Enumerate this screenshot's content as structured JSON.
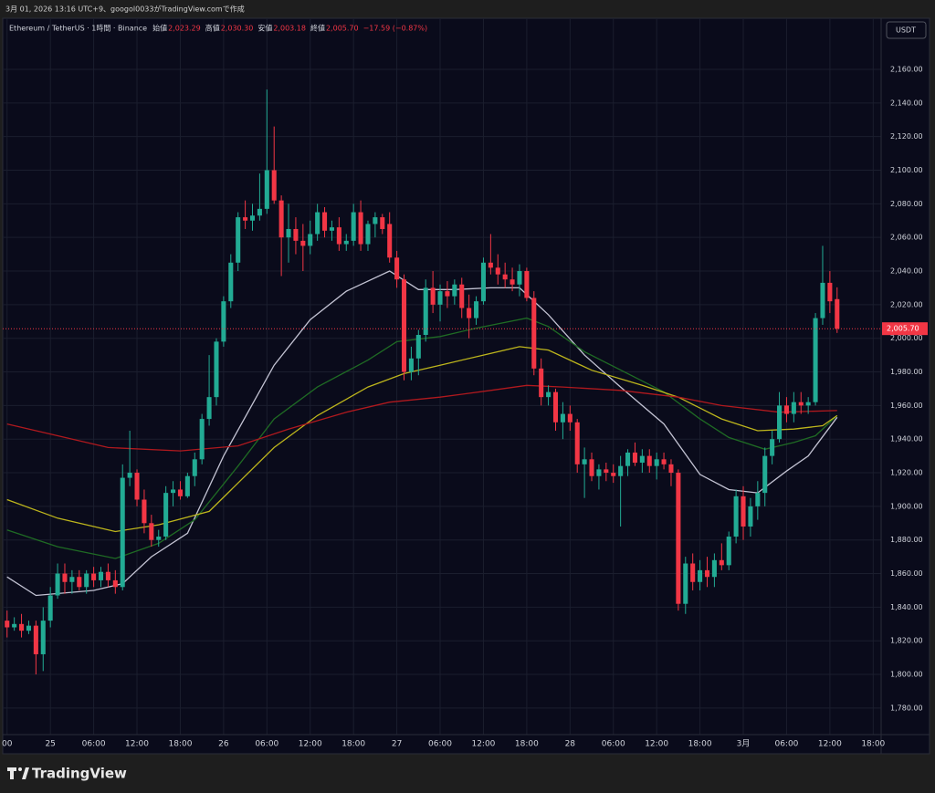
{
  "header": {
    "caption": "3月 01, 2026 13:16 UTC+9、googol0033がTradingView.comで作成"
  },
  "brand": "TradingView",
  "chart_data": {
    "type": "candlestick",
    "symbol": "Ethereum / TetherUS · 1時間 · Binance",
    "legend_values": [
      {
        "label": "始値",
        "value": "2,023.29"
      },
      {
        "label": "高値",
        "value": "2,030.30"
      },
      {
        "label": "安値",
        "value": "2,003.18"
      },
      {
        "label": "終値",
        "value": "2,005.70"
      }
    ],
    "change": "−17.59 (−0.87%)",
    "currency": "USDT",
    "up_color": "#22ab94",
    "down_color": "#f23645",
    "grid": true,
    "last_price": {
      "value": 2005.7,
      "label": "2,005.70"
    },
    "xlim": [
      -0.6,
      121.1
    ],
    "xticks": [
      {
        "value": 0,
        "label": "00"
      },
      {
        "value": 6,
        "label": "25"
      },
      {
        "value": 12,
        "label": "06:00"
      },
      {
        "value": 18,
        "label": "12:00"
      },
      {
        "value": 24,
        "label": "18:00"
      },
      {
        "value": 30,
        "label": "26"
      },
      {
        "value": 36,
        "label": "06:00"
      },
      {
        "value": 42,
        "label": "12:00"
      },
      {
        "value": 48,
        "label": "18:00"
      },
      {
        "value": 54,
        "label": "27"
      },
      {
        "value": 60,
        "label": "06:00"
      },
      {
        "value": 66,
        "label": "12:00"
      },
      {
        "value": 72,
        "label": "18:00"
      },
      {
        "value": 78,
        "label": "28"
      },
      {
        "value": 84,
        "label": "06:00"
      },
      {
        "value": 90,
        "label": "12:00"
      },
      {
        "value": 96,
        "label": "18:00"
      },
      {
        "value": 102,
        "label": "3月"
      },
      {
        "value": 108,
        "label": "06:00"
      },
      {
        "value": 114,
        "label": "12:00"
      },
      {
        "value": 120,
        "label": "18:00"
      }
    ],
    "ylim": [
      1764.2,
      2190.4
    ],
    "yticks": [
      {
        "value": 1780,
        "label": "1,780.00"
      },
      {
        "value": 1800,
        "label": "1,800.00"
      },
      {
        "value": 1820,
        "label": "1,820.00"
      },
      {
        "value": 1840,
        "label": "1,840.00"
      },
      {
        "value": 1860,
        "label": "1,860.00"
      },
      {
        "value": 1880,
        "label": "1,880.00"
      },
      {
        "value": 1900,
        "label": "1,900.00"
      },
      {
        "value": 1920,
        "label": "1,920.00"
      },
      {
        "value": 1940,
        "label": "1,940.00"
      },
      {
        "value": 1960,
        "label": "1,960.00"
      },
      {
        "value": 1980,
        "label": "1,980.00"
      },
      {
        "value": 2000,
        "label": "2,000.00"
      },
      {
        "value": 2020,
        "label": "2,020.00"
      },
      {
        "value": 2040,
        "label": "2,040.00"
      },
      {
        "value": 2060,
        "label": "2,060.00"
      },
      {
        "value": 2080,
        "label": "2,080.00"
      },
      {
        "value": 2100,
        "label": "2,100.00"
      },
      {
        "value": 2120,
        "label": "2,120.00"
      },
      {
        "value": 2140,
        "label": "2,140.00"
      },
      {
        "value": 2160,
        "label": "2,160.00"
      }
    ],
    "ohlc": [
      [
        1832,
        1838,
        1822,
        1828
      ],
      [
        1828,
        1834,
        1826,
        1830
      ],
      [
        1830,
        1836,
        1822,
        1826
      ],
      [
        1826,
        1832,
        1824,
        1829
      ],
      [
        1829,
        1832,
        1800,
        1812
      ],
      [
        1812,
        1840,
        1802,
        1832
      ],
      [
        1832,
        1852,
        1828,
        1847
      ],
      [
        1847,
        1866,
        1845,
        1860
      ],
      [
        1860,
        1866,
        1848,
        1855
      ],
      [
        1855,
        1862,
        1848,
        1858
      ],
      [
        1858,
        1862,
        1850,
        1852
      ],
      [
        1852,
        1862,
        1848,
        1860
      ],
      [
        1860,
        1864,
        1852,
        1856
      ],
      [
        1856,
        1864,
        1852,
        1861
      ],
      [
        1861,
        1866,
        1852,
        1856
      ],
      [
        1856,
        1862,
        1848,
        1852
      ],
      [
        1852,
        1925,
        1850,
        1917
      ],
      [
        1917,
        1945,
        1912,
        1920
      ],
      [
        1920,
        1922,
        1900,
        1904
      ],
      [
        1904,
        1910,
        1884,
        1890
      ],
      [
        1890,
        1895,
        1876,
        1880
      ],
      [
        1880,
        1886,
        1876,
        1882
      ],
      [
        1882,
        1912,
        1880,
        1908
      ],
      [
        1908,
        1915,
        1900,
        1910
      ],
      [
        1910,
        1915,
        1904,
        1906
      ],
      [
        1906,
        1920,
        1905,
        1918
      ],
      [
        1918,
        1932,
        1912,
        1928
      ],
      [
        1928,
        1955,
        1925,
        1952
      ],
      [
        1952,
        1990,
        1948,
        1965
      ],
      [
        1965,
        2000,
        1960,
        1998
      ],
      [
        1998,
        2025,
        1995,
        2022
      ],
      [
        2022,
        2050,
        2018,
        2045
      ],
      [
        2045,
        2075,
        2040,
        2072
      ],
      [
        2072,
        2082,
        2065,
        2070
      ],
      [
        2070,
        2080,
        2064,
        2073
      ],
      [
        2073,
        2098,
        2070,
        2077
      ],
      [
        2077,
        2148,
        2074,
        2100
      ],
      [
        2100,
        2126,
        2080,
        2082
      ],
      [
        2082,
        2085,
        2037,
        2060
      ],
      [
        2060,
        2080,
        2045,
        2065
      ],
      [
        2065,
        2072,
        2050,
        2058
      ],
      [
        2058,
        2068,
        2040,
        2055
      ],
      [
        2055,
        2070,
        2050,
        2062
      ],
      [
        2062,
        2080,
        2058,
        2075
      ],
      [
        2075,
        2078,
        2060,
        2064
      ],
      [
        2064,
        2070,
        2058,
        2066
      ],
      [
        2066,
        2072,
        2052,
        2056
      ],
      [
        2056,
        2062,
        2052,
        2058
      ],
      [
        2058,
        2080,
        2055,
        2075
      ],
      [
        2075,
        2082,
        2052,
        2056
      ],
      [
        2056,
        2070,
        2052,
        2068
      ],
      [
        2068,
        2075,
        2060,
        2072
      ],
      [
        2072,
        2074,
        2062,
        2065
      ],
      [
        2068,
        2075,
        2045,
        2048
      ],
      [
        2048,
        2052,
        2030,
        2035
      ],
      [
        2035,
        2038,
        1975,
        1980
      ],
      [
        1980,
        1995,
        1975,
        1988
      ],
      [
        1988,
        2005,
        1978,
        2002
      ],
      [
        2002,
        2035,
        1998,
        2030
      ],
      [
        2030,
        2040,
        2015,
        2020
      ],
      [
        2020,
        2032,
        2010,
        2028
      ],
      [
        2028,
        2034,
        2018,
        2025
      ],
      [
        2025,
        2035,
        2020,
        2032
      ],
      [
        2032,
        2036,
        2012,
        2018
      ],
      [
        2018,
        2026,
        2000,
        2012
      ],
      [
        2012,
        2025,
        2008,
        2022
      ],
      [
        2022,
        2048,
        2020,
        2045
      ],
      [
        2045,
        2062,
        2038,
        2042
      ],
      [
        2042,
        2050,
        2032,
        2038
      ],
      [
        2038,
        2045,
        2030,
        2035
      ],
      [
        2035,
        2042,
        2028,
        2032
      ],
      [
        2032,
        2044,
        2025,
        2040
      ],
      [
        2040,
        2042,
        2022,
        2024
      ],
      [
        2024,
        2028,
        1978,
        1982
      ],
      [
        1982,
        1988,
        1960,
        1965
      ],
      [
        1965,
        1972,
        1960,
        1968
      ],
      [
        1968,
        1970,
        1945,
        1950
      ],
      [
        1950,
        1962,
        1940,
        1955
      ],
      [
        1955,
        1960,
        1945,
        1950
      ],
      [
        1950,
        1952,
        1920,
        1925
      ],
      [
        1925,
        1935,
        1905,
        1928
      ],
      [
        1928,
        1932,
        1915,
        1918
      ],
      [
        1918,
        1925,
        1910,
        1922
      ],
      [
        1922,
        1926,
        1915,
        1920
      ],
      [
        1920,
        1925,
        1914,
        1918
      ],
      [
        1918,
        1930,
        1888,
        1924
      ],
      [
        1924,
        1934,
        1918,
        1932
      ],
      [
        1932,
        1938,
        1924,
        1926
      ],
      [
        1926,
        1934,
        1920,
        1930
      ],
      [
        1930,
        1934,
        1920,
        1924
      ],
      [
        1924,
        1932,
        1916,
        1928
      ],
      [
        1928,
        1932,
        1922,
        1925
      ],
      [
        1925,
        1928,
        1912,
        1920
      ],
      [
        1920,
        1922,
        1838,
        1842
      ],
      [
        1842,
        1870,
        1836,
        1866
      ],
      [
        1866,
        1872,
        1850,
        1855
      ],
      [
        1855,
        1868,
        1850,
        1862
      ],
      [
        1862,
        1870,
        1852,
        1858
      ],
      [
        1858,
        1872,
        1852,
        1868
      ],
      [
        1868,
        1878,
        1862,
        1865
      ],
      [
        1865,
        1885,
        1862,
        1882
      ],
      [
        1882,
        1910,
        1878,
        1906
      ],
      [
        1906,
        1912,
        1880,
        1888
      ],
      [
        1888,
        1905,
        1882,
        1900
      ],
      [
        1900,
        1915,
        1892,
        1908
      ],
      [
        1908,
        1935,
        1900,
        1930
      ],
      [
        1930,
        1945,
        1925,
        1940
      ],
      [
        1940,
        1968,
        1938,
        1960
      ],
      [
        1960,
        1965,
        1950,
        1955
      ],
      [
        1955,
        1968,
        1950,
        1962
      ],
      [
        1962,
        1968,
        1955,
        1960
      ],
      [
        1960,
        1965,
        1955,
        1962
      ],
      [
        1962,
        2015,
        1960,
        2012
      ],
      [
        2012,
        2055,
        2008,
        2033
      ],
      [
        2033,
        2040,
        2015,
        2022
      ],
      [
        2023.29,
        2030.3,
        2003.18,
        2005.7
      ]
    ],
    "lines": [
      {
        "color": "#c3c3d3",
        "x": [
          0,
          4,
          12,
          16,
          20,
          25,
          30,
          37,
          42,
          47,
          53,
          57,
          62,
          67,
          71,
          75,
          80,
          85,
          91,
          96,
          100,
          104,
          108,
          111,
          115
        ],
        "values": [
          1858,
          1847,
          1850,
          1854,
          1870,
          1884,
          1930,
          1984,
          2011,
          2028,
          2040,
          2029,
          2029,
          2030,
          2030,
          2014,
          1990,
          1971,
          1949,
          1919,
          1910,
          1908,
          1921,
          1930,
          1953
        ]
      },
      {
        "color": "#1f6b24",
        "x": [
          0,
          7,
          15,
          21,
          26,
          32,
          37,
          43,
          50,
          54,
          60,
          65,
          72,
          75,
          80,
          86,
          91,
          96,
          100,
          105,
          109,
          112,
          115
        ],
        "values": [
          1886,
          1876,
          1869,
          1878,
          1892,
          1924,
          1952,
          1971,
          1987,
          1998,
          2001,
          2006,
          2012,
          2007,
          1992,
          1979,
          1968,
          1952,
          1941,
          1934,
          1938,
          1942,
          1954
        ]
      },
      {
        "color": "#bdb51c",
        "x": [
          0,
          7,
          15,
          21,
          28,
          37,
          43,
          50,
          55,
          60,
          66,
          71,
          75,
          81,
          88,
          93,
          99,
          104,
          109,
          113,
          115
        ],
        "values": [
          1904,
          1893,
          1885,
          1889,
          1897,
          1935,
          1954,
          1971,
          1979,
          1984,
          1990,
          1995,
          1993,
          1981,
          1972,
          1965,
          1952,
          1945,
          1946,
          1948,
          1954
        ]
      },
      {
        "color": "#b0191e",
        "x": [
          0,
          7,
          14,
          24,
          32,
          39,
          47,
          53,
          60,
          67,
          72,
          77,
          85,
          93,
          99,
          107,
          115
        ],
        "values": [
          1949,
          1942,
          1935,
          1933,
          1936,
          1946,
          1956,
          1962,
          1965,
          1969,
          1972,
          1971,
          1969,
          1965,
          1960,
          1956,
          1957
        ]
      }
    ]
  }
}
